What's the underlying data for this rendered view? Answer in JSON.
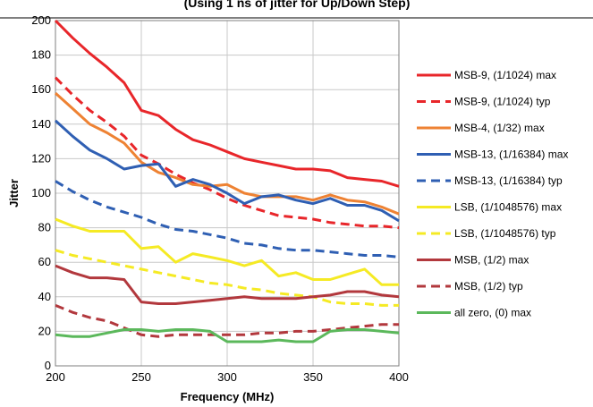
{
  "chart_data": {
    "type": "line",
    "title": "(Using 1 ns of jitter for Up/Down Step)",
    "xlabel": "Frequency (MHz)",
    "ylabel": "Jitter",
    "xlim": [
      200,
      400
    ],
    "ylim": [
      0,
      200
    ],
    "xticks": [
      "200",
      "250",
      "300",
      "350",
      "400"
    ],
    "yticks": [
      "0",
      "20",
      "40",
      "60",
      "80",
      "100",
      "120",
      "140",
      "160",
      "180",
      "200"
    ],
    "grid": true,
    "legend_position": "right",
    "x": [
      200,
      210,
      220,
      230,
      240,
      250,
      260,
      270,
      280,
      290,
      300,
      310,
      320,
      330,
      340,
      350,
      360,
      370,
      380,
      390,
      400
    ],
    "series": [
      {
        "name": "MSB-9, (1/1024) max",
        "color": "#e8262a",
        "dash": "solid",
        "values": [
          200,
          190,
          181,
          173,
          164,
          148,
          145,
          137,
          131,
          128,
          124,
          120,
          118,
          116,
          114,
          114,
          113,
          109,
          108,
          107,
          104
        ]
      },
      {
        "name": "MSB-9, (1/1024) typ",
        "color": "#e8262a",
        "dash": "dashed",
        "values": [
          167,
          157,
          148,
          141,
          133,
          122,
          117,
          111,
          106,
          102,
          97,
          93,
          90,
          87,
          86,
          85,
          83,
          82,
          81,
          81,
          80
        ]
      },
      {
        "name": "MSB-4, (1/32) max",
        "color": "#ee8233",
        "dash": "solid",
        "values": [
          158,
          149,
          140,
          135,
          129,
          118,
          112,
          109,
          105,
          104,
          105,
          100,
          98,
          98,
          98,
          96,
          99,
          96,
          95,
          92,
          88
        ]
      },
      {
        "name": "MSB-13, (1/16384) max",
        "color": "#2f5fb3",
        "dash": "solid",
        "values": [
          142,
          133,
          125,
          120,
          114,
          116,
          117,
          104,
          108,
          105,
          100,
          94,
          98,
          99,
          96,
          94,
          97,
          93,
          93,
          90,
          84
        ]
      },
      {
        "name": "MSB-13, (1/16384) typ",
        "color": "#2f5fb3",
        "dash": "dashed",
        "values": [
          107,
          101,
          96,
          92,
          89,
          86,
          82,
          79,
          78,
          76,
          74,
          71,
          70,
          68,
          67,
          67,
          66,
          65,
          64,
          64,
          63
        ]
      },
      {
        "name": "LSB, (1/1048576) max",
        "color": "#f5ea24",
        "dash": "solid",
        "values": [
          85,
          81,
          78,
          78,
          78,
          68,
          69,
          60,
          65,
          63,
          61,
          58,
          61,
          52,
          54,
          50,
          50,
          53,
          56,
          47,
          47
        ]
      },
      {
        "name": "LSB, (1/1048576) typ",
        "color": "#f5ea24",
        "dash": "dashed",
        "values": [
          67,
          64,
          62,
          60,
          58,
          56,
          54,
          52,
          50,
          48,
          47,
          45,
          44,
          42,
          41,
          40,
          37,
          36,
          36,
          35,
          35
        ]
      },
      {
        "name": "MSB, (1/2) max",
        "color": "#b2383d",
        "dash": "solid",
        "values": [
          58,
          54,
          51,
          51,
          50,
          37,
          36,
          36,
          37,
          38,
          39,
          40,
          39,
          39,
          39,
          40,
          41,
          43,
          43,
          41,
          40
        ]
      },
      {
        "name": "MSB, (1/2) typ",
        "color": "#b2383d",
        "dash": "dashed",
        "values": [
          35,
          31,
          28,
          26,
          22,
          18,
          17,
          18,
          18,
          18,
          18,
          18,
          19,
          19,
          20,
          20,
          21,
          22,
          23,
          24,
          24
        ]
      },
      {
        "name": "all zero, (0) max",
        "color": "#5bb85b",
        "dash": "solid",
        "values": [
          18,
          17,
          17,
          19,
          21,
          21,
          20,
          21,
          21,
          20,
          14,
          14,
          14,
          15,
          14,
          14,
          20,
          21,
          21,
          20,
          19
        ]
      }
    ]
  }
}
